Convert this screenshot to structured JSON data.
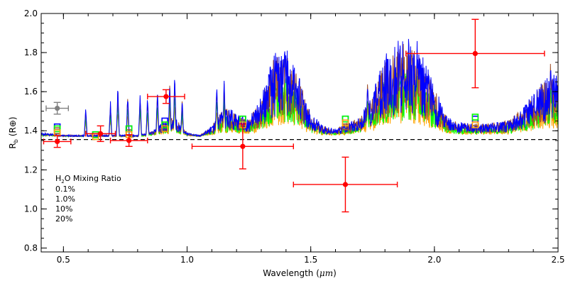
{
  "chart_data": {
    "type": "line",
    "title": "",
    "xlabel_main": "Wavelength (",
    "xlabel_unit": "μm",
    "xlabel_close": ")",
    "ylabel_main": "R",
    "ylabel_sub": "b",
    "ylabel_unit": "(R⊕)",
    "xlim": [
      0.41,
      2.5
    ],
    "ylim": [
      0.78,
      2.0
    ],
    "x_ticks": [
      {
        "value": 0.5,
        "label": "0.5"
      },
      {
        "value": 1.0,
        "label": "1.0"
      },
      {
        "value": 1.5,
        "label": "1.5"
      },
      {
        "value": 2.0,
        "label": "2.0"
      },
      {
        "value": 2.5,
        "label": "2.5"
      }
    ],
    "y_ticks": [
      {
        "value": 0.8,
        "label": "0.8"
      },
      {
        "value": 1.0,
        "label": "1.0"
      },
      {
        "value": 1.2,
        "label": "1.2"
      },
      {
        "value": 1.4,
        "label": "1.4"
      },
      {
        "value": 1.6,
        "label": "1.6"
      },
      {
        "value": 1.8,
        "label": "1.8"
      },
      {
        "value": 2.0,
        "label": "2.0"
      }
    ],
    "reference_line_y": 1.355,
    "legend": {
      "title_pre": "H",
      "title_sub": "2",
      "title_post": "O Mixing Ratio",
      "placement": "bottom-left",
      "entries": [
        {
          "label": "0.1%",
          "color": "#a0522d"
        },
        {
          "label": "1.0%",
          "color": "#0000ff"
        },
        {
          "label": "10%",
          "color": "#00ff00"
        },
        {
          "label": "20%",
          "color": "#ffa500"
        }
      ]
    },
    "series": [
      {
        "label": "0.1%",
        "color": "#a0522d",
        "amplitude": 1.0
      },
      {
        "label": "1.0%",
        "color": "#0000ff",
        "amplitude": 1.05
      },
      {
        "label": "10%",
        "color": "#00ff00",
        "amplitude": 0.72
      },
      {
        "label": "20%",
        "color": "#ffa500",
        "amplitude": 0.58
      }
    ],
    "model_envelope": [
      [
        0.41,
        1.38
      ],
      [
        0.5,
        1.37
      ],
      [
        0.6,
        1.37
      ],
      [
        0.7,
        1.37
      ],
      [
        0.8,
        1.37
      ],
      [
        0.85,
        1.38
      ],
      [
        0.9,
        1.41
      ],
      [
        0.95,
        1.43
      ],
      [
        1.0,
        1.38
      ],
      [
        1.05,
        1.37
      ],
      [
        1.1,
        1.4
      ],
      [
        1.15,
        1.46
      ],
      [
        1.2,
        1.44
      ],
      [
        1.25,
        1.42
      ],
      [
        1.3,
        1.49
      ],
      [
        1.35,
        1.62
      ],
      [
        1.4,
        1.64
      ],
      [
        1.45,
        1.56
      ],
      [
        1.5,
        1.44
      ],
      [
        1.55,
        1.4
      ],
      [
        1.6,
        1.39
      ],
      [
        1.65,
        1.41
      ],
      [
        1.7,
        1.43
      ],
      [
        1.75,
        1.5
      ],
      [
        1.8,
        1.62
      ],
      [
        1.85,
        1.66
      ],
      [
        1.9,
        1.67
      ],
      [
        1.95,
        1.63
      ],
      [
        2.0,
        1.52
      ],
      [
        2.05,
        1.43
      ],
      [
        2.1,
        1.41
      ],
      [
        2.15,
        1.41
      ],
      [
        2.2,
        1.41
      ],
      [
        2.25,
        1.41
      ],
      [
        2.3,
        1.42
      ],
      [
        2.35,
        1.45
      ],
      [
        2.4,
        1.5
      ],
      [
        2.45,
        1.55
      ],
      [
        2.5,
        1.56
      ]
    ],
    "model_spikes": [
      {
        "x": 0.59,
        "y": 1.52
      },
      {
        "x": 0.69,
        "y": 1.55
      },
      {
        "x": 0.72,
        "y": 1.63
      },
      {
        "x": 0.76,
        "y": 1.59
      },
      {
        "x": 0.81,
        "y": 1.6
      },
      {
        "x": 0.84,
        "y": 1.58
      },
      {
        "x": 0.88,
        "y": 1.62
      },
      {
        "x": 0.93,
        "y": 1.66
      },
      {
        "x": 0.95,
        "y": 1.69
      },
      {
        "x": 0.98,
        "y": 1.56
      },
      {
        "x": 1.12,
        "y": 1.66
      },
      {
        "x": 1.15,
        "y": 1.66
      },
      {
        "x": 1.36,
        "y": 1.79
      },
      {
        "x": 1.4,
        "y": 1.85
      },
      {
        "x": 1.44,
        "y": 1.7
      },
      {
        "x": 1.73,
        "y": 1.68
      },
      {
        "x": 1.86,
        "y": 1.88
      },
      {
        "x": 1.93,
        "y": 1.88
      },
      {
        "x": 2.47,
        "y": 1.8
      }
    ],
    "data_points": [
      {
        "x": 0.475,
        "y": 1.345,
        "xerr_low": 0.055,
        "xerr_high": 0.055,
        "yerr": 0.03,
        "color": "#ff0000"
      },
      {
        "x": 0.65,
        "y": 1.385,
        "xerr_low": 0.06,
        "xerr_high": 0.06,
        "yerr": 0.04,
        "color": "#ff0000"
      },
      {
        "x": 0.765,
        "y": 1.35,
        "xerr_low": 0.075,
        "xerr_high": 0.075,
        "yerr": 0.03,
        "color": "#ff0000"
      },
      {
        "x": 0.915,
        "y": 1.575,
        "xerr_low": 0.075,
        "xerr_high": 0.075,
        "yerr": 0.035,
        "color": "#ff0000"
      },
      {
        "x": 1.225,
        "y": 1.32,
        "xerr_low": 0.205,
        "xerr_high": 0.205,
        "yerr": 0.115,
        "color": "#ff0000"
      },
      {
        "x": 1.64,
        "y": 1.125,
        "xerr_low": 0.21,
        "xerr_high": 0.21,
        "yerr": 0.14,
        "color": "#ff0000"
      },
      {
        "x": 2.165,
        "y": 1.795,
        "xerr_low": 0.28,
        "xerr_high": 0.28,
        "yerr": 0.175,
        "color": "#ff0000"
      },
      {
        "x": 0.475,
        "y": 1.515,
        "xerr_low": 0.045,
        "xerr_high": 0.045,
        "yerr": 0.03,
        "color": "#808080"
      }
    ],
    "band_markers": [
      {
        "x": 0.475,
        "values": [
          1.4,
          1.42,
          1.41,
          1.39
        ]
      },
      {
        "x": 0.63,
        "values": [
          1.38,
          1.38,
          1.38,
          1.37
        ]
      },
      {
        "x": 0.765,
        "values": [
          1.39,
          1.41,
          1.41,
          1.38
        ]
      },
      {
        "x": 0.91,
        "values": [
          1.43,
          1.45,
          1.43,
          1.41
        ]
      },
      {
        "x": 1.225,
        "values": [
          1.44,
          1.46,
          1.46,
          1.43
        ]
      },
      {
        "x": 1.64,
        "values": [
          1.42,
          1.46,
          1.46,
          1.44
        ]
      },
      {
        "x": 2.165,
        "values": [
          1.44,
          1.46,
          1.47,
          1.43
        ]
      }
    ]
  }
}
